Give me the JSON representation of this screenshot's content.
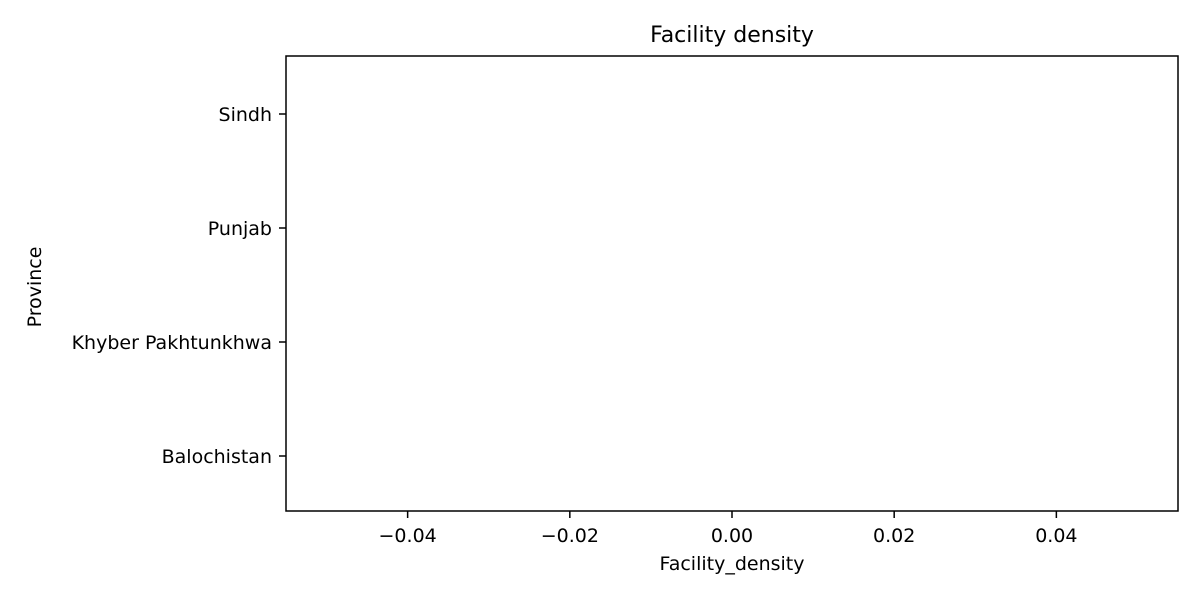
{
  "chart_data": {
    "type": "bar",
    "orientation": "horizontal",
    "title": "Facility density",
    "xlabel": "Facility_density",
    "ylabel": "Province",
    "categories": [
      "Sindh",
      "Punjab",
      "Khyber Pakhtunkhwa",
      "Balochistan"
    ],
    "values": [
      0,
      0,
      0,
      0
    ],
    "xlim": [
      -0.055,
      0.055
    ],
    "xticks": [
      -0.04,
      -0.02,
      0.0,
      0.02,
      0.04
    ],
    "xtick_labels": [
      "−0.04",
      "−0.02",
      "0.00",
      "0.02",
      "0.04"
    ],
    "grid": false,
    "legend": "none",
    "colors": {
      "axis": "#000000",
      "background": "#ffffff",
      "bar": "#4c72b0"
    }
  }
}
